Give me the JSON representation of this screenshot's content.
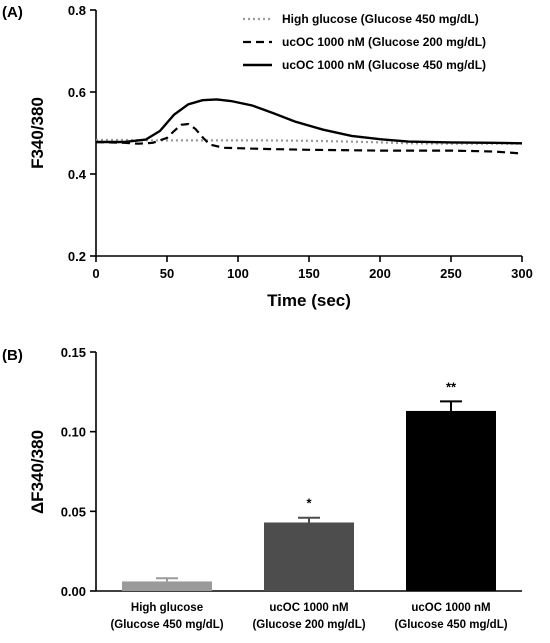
{
  "chart_data": [
    {
      "panel": "(A)",
      "type": "line",
      "xlabel": "Time (sec)",
      "ylabel": "F340/380",
      "xlim": [
        0,
        300
      ],
      "ylim": [
        0.2,
        0.8
      ],
      "xticks": [
        0,
        50,
        100,
        150,
        200,
        250,
        300
      ],
      "yticks": [
        0.2,
        0.4,
        0.6,
        0.8
      ],
      "ytick_labels": [
        "0.2",
        "0.4",
        "0.6",
        "0.8"
      ],
      "legend_position": "top-right",
      "grid": false,
      "series": [
        {
          "name": "High glucose (Glucose 450 mg/dL)",
          "style": "dotted",
          "color": "#9a9a9a",
          "x": [
            0,
            20,
            40,
            60,
            80,
            100,
            120,
            150,
            180,
            200,
            220,
            250,
            280,
            300
          ],
          "y": [
            0.483,
            0.483,
            0.482,
            0.482,
            0.482,
            0.482,
            0.482,
            0.481,
            0.479,
            0.477,
            0.475,
            0.474,
            0.474,
            0.474
          ]
        },
        {
          "name": "ucOC 1000 nM (Glucose 200 mg/dL)",
          "style": "dashed",
          "color": "#000000",
          "x": [
            0,
            20,
            30,
            40,
            50,
            55,
            60,
            65,
            70,
            75,
            80,
            90,
            100,
            120,
            150,
            200,
            250,
            280,
            300
          ],
          "y": [
            0.478,
            0.476,
            0.474,
            0.476,
            0.488,
            0.505,
            0.52,
            0.522,
            0.51,
            0.49,
            0.472,
            0.464,
            0.463,
            0.461,
            0.459,
            0.457,
            0.457,
            0.455,
            0.45
          ]
        },
        {
          "name": "ucOC 1000 nM  (Glucose 450 mg/dL)",
          "style": "solid",
          "color": "#000000",
          "x": [
            0,
            20,
            35,
            45,
            55,
            65,
            75,
            85,
            95,
            110,
            125,
            140,
            160,
            180,
            200,
            220,
            250,
            280,
            300
          ],
          "y": [
            0.478,
            0.478,
            0.484,
            0.505,
            0.545,
            0.57,
            0.58,
            0.582,
            0.578,
            0.567,
            0.548,
            0.528,
            0.508,
            0.493,
            0.485,
            0.479,
            0.477,
            0.476,
            0.475
          ]
        }
      ]
    },
    {
      "panel": "(B)",
      "type": "bar",
      "ylabel": "ΔF340/380",
      "ylim": [
        0,
        0.15
      ],
      "yticks": [
        0,
        0.05,
        0.1,
        0.15
      ],
      "ytick_labels": [
        "0.00",
        "0.05",
        "0.10",
        "0.15"
      ],
      "categories": [
        [
          "High glucose",
          "(Glucose 450 mg/dL)"
        ],
        [
          "ucOC 1000 nM",
          "(Glucose 200 mg/dL)"
        ],
        [
          "ucOC 1000 nM",
          "(Glucose 450 mg/dL)"
        ]
      ],
      "values": [
        0.006,
        0.043,
        0.113
      ],
      "errors": [
        0.002,
        0.003,
        0.006
      ],
      "significance": [
        "",
        "*",
        "**"
      ],
      "bar_colors": [
        "#9a9a9a",
        "#4d4d4d",
        "#000000"
      ]
    }
  ]
}
